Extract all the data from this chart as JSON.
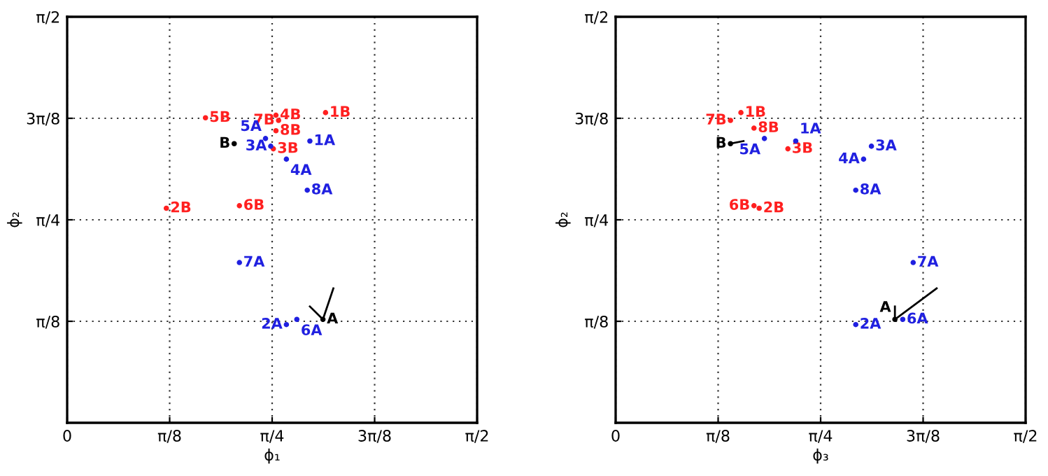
{
  "chart_data": [
    {
      "type": "scatter",
      "xlabel": "ϕ₁",
      "ylabel": "ϕ₂",
      "marker": "circle",
      "grid": true,
      "xlim": [
        0,
        1.5708
      ],
      "ylim": [
        0,
        1.5708
      ],
      "xticks": [
        0,
        {
          "value": 0.3927,
          "label": "π/8"
        },
        {
          "value": 0.7854,
          "label": "π/4"
        },
        {
          "value": 1.1781,
          "label": "3π/8"
        },
        {
          "value": 1.5708,
          "label": "π/2"
        }
      ],
      "yticks": [
        {
          "value": 0.3927,
          "label": "π/8"
        },
        {
          "value": 0.7854,
          "label": "π/4"
        },
        {
          "value": 1.1781,
          "label": "3π/8"
        },
        {
          "value": 1.5708,
          "label": "π/2"
        }
      ],
      "series": [
        {
          "name": "1B",
          "color": "#ff2020",
          "x": [
            0.99
          ],
          "values": [
            1.2
          ]
        },
        {
          "name": "2B",
          "color": "#ff2020",
          "x": [
            0.38
          ],
          "values": [
            0.83
          ]
        },
        {
          "name": "3B",
          "color": "#ff2020",
          "x": [
            0.79
          ],
          "values": [
            1.06
          ]
        },
        {
          "name": "4B",
          "color": "#ff2020",
          "x": [
            0.8
          ],
          "values": [
            1.19
          ]
        },
        {
          "name": "5B",
          "color": "#ff2020",
          "x": [
            0.53
          ],
          "values": [
            1.18
          ]
        },
        {
          "name": "6B",
          "color": "#ff2020",
          "x": [
            0.66
          ],
          "values": [
            0.84
          ]
        },
        {
          "name": "7B",
          "color": "#ff2020",
          "x": [
            0.81
          ],
          "values": [
            1.17
          ]
        },
        {
          "name": "8B",
          "color": "#ff2020",
          "x": [
            0.8
          ],
          "values": [
            1.13
          ]
        },
        {
          "name": "1A",
          "color": "#2020e0",
          "x": [
            0.93
          ],
          "values": [
            1.09
          ]
        },
        {
          "name": "2A",
          "color": "#2020e0",
          "x": [
            0.84
          ],
          "values": [
            0.38
          ]
        },
        {
          "name": "3A",
          "color": "#2020e0",
          "x": [
            0.78
          ],
          "values": [
            1.07
          ]
        },
        {
          "name": "4A",
          "color": "#2020e0",
          "x": [
            0.84
          ],
          "values": [
            1.02
          ]
        },
        {
          "name": "5A",
          "color": "#2020e0",
          "x": [
            0.76
          ],
          "values": [
            1.1
          ]
        },
        {
          "name": "6A",
          "color": "#2020e0",
          "x": [
            0.88
          ],
          "values": [
            0.4
          ]
        },
        {
          "name": "7A",
          "color": "#2020e0",
          "x": [
            0.66
          ],
          "values": [
            0.62
          ]
        },
        {
          "name": "8A",
          "color": "#2020e0",
          "x": [
            0.92
          ],
          "values": [
            0.9
          ]
        },
        {
          "name": "A",
          "color": "#000000",
          "x": [
            0.98
          ],
          "values": [
            0.4
          ]
        },
        {
          "name": "B",
          "color": "#000000",
          "x": [
            0.64
          ],
          "values": [
            1.08
          ]
        },
        {
          "type": "line",
          "marker": "none",
          "color": "#000000",
          "x": [
            0.98,
            1.02
          ],
          "values": [
            0.4,
            0.52
          ]
        },
        {
          "type": "line",
          "marker": "none",
          "color": "#000000",
          "x": [
            0.98,
            0.93
          ],
          "values": [
            0.4,
            0.45
          ]
        }
      ]
    },
    {
      "type": "scatter",
      "xlabel": "ϕ₃",
      "ylabel": "ϕ₂",
      "marker": "circle",
      "grid": true,
      "xlim": [
        0,
        1.5708
      ],
      "ylim": [
        0,
        1.5708
      ],
      "xticks": [
        0,
        {
          "value": 0.3927,
          "label": "π/8"
        },
        {
          "value": 0.7854,
          "label": "π/4"
        },
        {
          "value": 1.1781,
          "label": "3π/8"
        },
        {
          "value": 1.5708,
          "label": "π/2"
        }
      ],
      "yticks": [
        {
          "value": 0.3927,
          "label": "π/8"
        },
        {
          "value": 0.7854,
          "label": "π/4"
        },
        {
          "value": 1.1781,
          "label": "3π/8"
        },
        {
          "value": 1.5708,
          "label": "π/2"
        }
      ],
      "series": [
        {
          "name": "1B",
          "color": "#ff2020",
          "x": [
            0.48
          ],
          "values": [
            1.2
          ]
        },
        {
          "name": "2B",
          "color": "#ff2020",
          "x": [
            0.55
          ],
          "values": [
            0.83
          ]
        },
        {
          "name": "3B",
          "color": "#ff2020",
          "x": [
            0.66
          ],
          "values": [
            1.06
          ]
        },
        {
          "name": "6B",
          "color": "#ff2020",
          "x": [
            0.53
          ],
          "values": [
            0.84
          ]
        },
        {
          "name": "7B",
          "color": "#ff2020",
          "x": [
            0.44
          ],
          "values": [
            1.17
          ]
        },
        {
          "name": "8B",
          "color": "#ff2020",
          "x": [
            0.53
          ],
          "values": [
            1.14
          ]
        },
        {
          "name": "1A",
          "color": "#2020e0",
          "x": [
            0.69
          ],
          "values": [
            1.09
          ]
        },
        {
          "name": "2A",
          "color": "#2020e0",
          "x": [
            0.92
          ],
          "values": [
            0.38
          ]
        },
        {
          "name": "3A",
          "color": "#2020e0",
          "x": [
            0.98
          ],
          "values": [
            1.07
          ]
        },
        {
          "name": "4A",
          "color": "#2020e0",
          "x": [
            0.95
          ],
          "values": [
            1.02
          ]
        },
        {
          "name": "5A",
          "color": "#2020e0",
          "x": [
            0.57
          ],
          "values": [
            1.1
          ]
        },
        {
          "name": "6A",
          "color": "#2020e0",
          "x": [
            1.1
          ],
          "values": [
            0.4
          ]
        },
        {
          "name": "7A",
          "color": "#2020e0",
          "x": [
            1.14
          ],
          "values": [
            0.62
          ]
        },
        {
          "name": "8A",
          "color": "#2020e0",
          "x": [
            0.92
          ],
          "values": [
            0.9
          ]
        },
        {
          "name": "A",
          "color": "#000000",
          "x": [
            1.07
          ],
          "values": [
            0.4
          ]
        },
        {
          "name": "B",
          "color": "#000000",
          "x": [
            0.44
          ],
          "values": [
            1.08
          ]
        },
        {
          "type": "line",
          "marker": "none",
          "color": "#000000",
          "x": [
            1.07,
            1.23
          ],
          "values": [
            0.4,
            0.52
          ]
        },
        {
          "type": "line",
          "marker": "none",
          "color": "#000000",
          "x": [
            1.07,
            1.07
          ],
          "values": [
            0.4,
            0.45
          ]
        },
        {
          "type": "line",
          "marker": "none",
          "color": "#000000",
          "x": [
            0.44,
            0.49
          ],
          "values": [
            1.08,
            1.09
          ]
        }
      ]
    }
  ]
}
